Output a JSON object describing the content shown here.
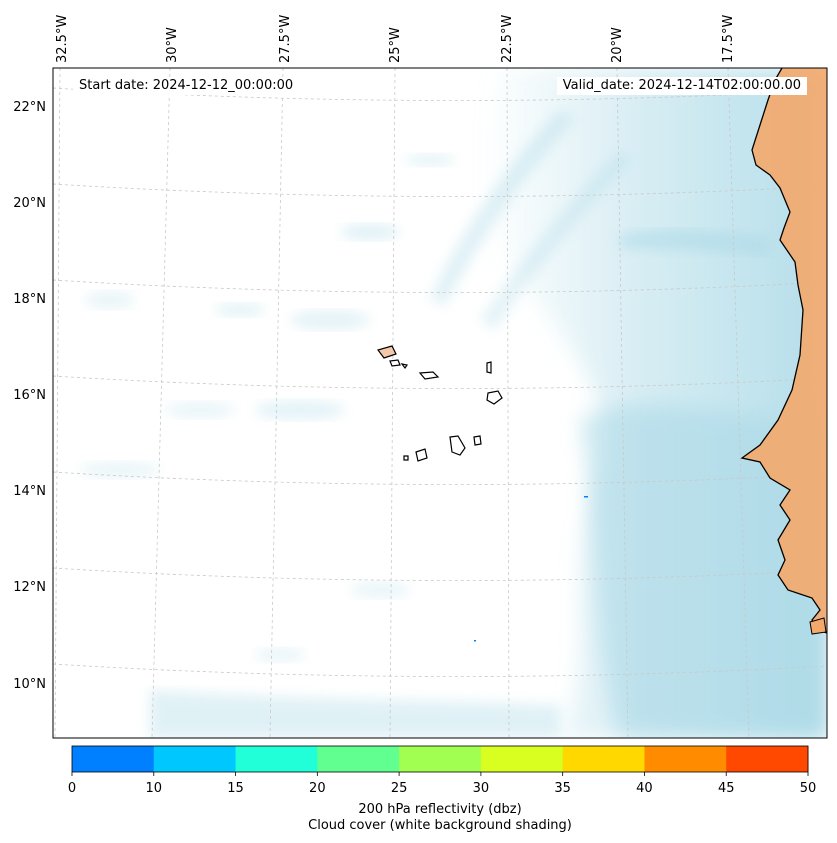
{
  "header": {
    "start_date": "Start date: 2024-12-12_00:00:00",
    "valid_date": "Valid_date: 2024-12-14T02:00:00.00"
  },
  "map": {
    "longitude_labels": [
      "32.5°W",
      "30°W",
      "27.5°W",
      "25°W",
      "22.5°W",
      "20°W",
      "17.5°W"
    ],
    "latitude_labels": [
      "22°N",
      "20°N",
      "18°N",
      "16°N",
      "14°N",
      "12°N",
      "10°N"
    ],
    "land_color": "#f4a86a",
    "cloud_color": "#a8d8e6",
    "coastline_color": "#000000",
    "gridlines": "dashed"
  },
  "colorbar": {
    "ticks": [
      "0",
      "10",
      "15",
      "20",
      "25",
      "30",
      "35",
      "40",
      "45",
      "50"
    ],
    "colors": [
      "#0080ff",
      "#00c8ff",
      "#20ffd8",
      "#60ff90",
      "#a0ff50",
      "#d8ff20",
      "#ffd800",
      "#ff8c00",
      "#ff4800"
    ],
    "label_line1": "200 hPa reflectivity (dbz)",
    "label_line2": "Cloud cover (white background shading)"
  }
}
